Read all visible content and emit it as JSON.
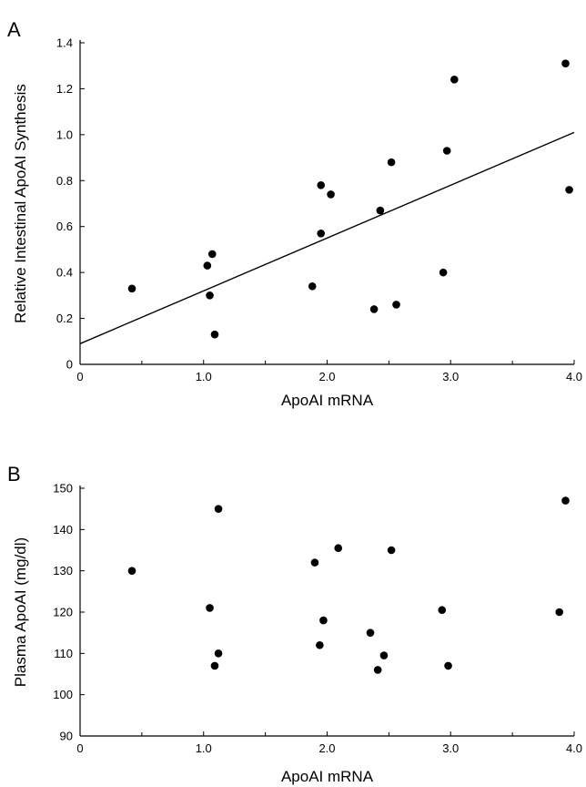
{
  "chart_data": [
    {
      "panel": "A",
      "type": "scatter",
      "xlabel": "ApoAI mRNA",
      "ylabel": "Relative Intestinal ApoAI Synthesis",
      "xlim": [
        0,
        4.0
      ],
      "ylim": [
        0,
        1.4
      ],
      "x_ticks": [
        "0",
        "1.0",
        "2.0",
        "3.0",
        "4.0"
      ],
      "y_ticks": [
        "0",
        "0.2",
        "0.4",
        "0.6",
        "0.8",
        "1.0",
        "1.2",
        "1.4"
      ],
      "trendline": {
        "x": [
          0,
          4.0
        ],
        "y": [
          0.09,
          1.01
        ]
      },
      "points": [
        {
          "x": 0.42,
          "y": 0.33
        },
        {
          "x": 1.03,
          "y": 0.43
        },
        {
          "x": 1.05,
          "y": 0.3
        },
        {
          "x": 1.07,
          "y": 0.48
        },
        {
          "x": 1.09,
          "y": 0.13
        },
        {
          "x": 1.88,
          "y": 0.34
        },
        {
          "x": 1.95,
          "y": 0.57
        },
        {
          "x": 1.95,
          "y": 0.78
        },
        {
          "x": 2.03,
          "y": 0.74
        },
        {
          "x": 2.38,
          "y": 0.24
        },
        {
          "x": 2.43,
          "y": 0.67
        },
        {
          "x": 2.52,
          "y": 0.88
        },
        {
          "x": 2.56,
          "y": 0.26
        },
        {
          "x": 2.94,
          "y": 0.4
        },
        {
          "x": 2.97,
          "y": 0.93
        },
        {
          "x": 3.03,
          "y": 1.24
        },
        {
          "x": 3.93,
          "y": 1.31
        },
        {
          "x": 3.96,
          "y": 0.76
        }
      ]
    },
    {
      "panel": "B",
      "type": "scatter",
      "xlabel": "ApoAI mRNA",
      "ylabel": "Plasma ApoAI (mg/dl)",
      "xlim": [
        0,
        4.0
      ],
      "ylim": [
        90,
        150
      ],
      "x_ticks": [
        "0",
        "1.0",
        "2.0",
        "3.0",
        "4.0"
      ],
      "y_ticks": [
        "90",
        "100",
        "110",
        "120",
        "130",
        "140",
        "150"
      ],
      "points": [
        {
          "x": 0.42,
          "y": 130
        },
        {
          "x": 1.05,
          "y": 121
        },
        {
          "x": 1.09,
          "y": 107
        },
        {
          "x": 1.12,
          "y": 110
        },
        {
          "x": 1.12,
          "y": 145
        },
        {
          "x": 1.9,
          "y": 132
        },
        {
          "x": 1.94,
          "y": 112
        },
        {
          "x": 1.97,
          "y": 118
        },
        {
          "x": 2.09,
          "y": 135.5
        },
        {
          "x": 2.35,
          "y": 115
        },
        {
          "x": 2.41,
          "y": 106
        },
        {
          "x": 2.46,
          "y": 109.5
        },
        {
          "x": 2.52,
          "y": 135
        },
        {
          "x": 2.93,
          "y": 120.5
        },
        {
          "x": 2.98,
          "y": 107
        },
        {
          "x": 3.88,
          "y": 120
        },
        {
          "x": 3.93,
          "y": 147
        }
      ]
    }
  ]
}
